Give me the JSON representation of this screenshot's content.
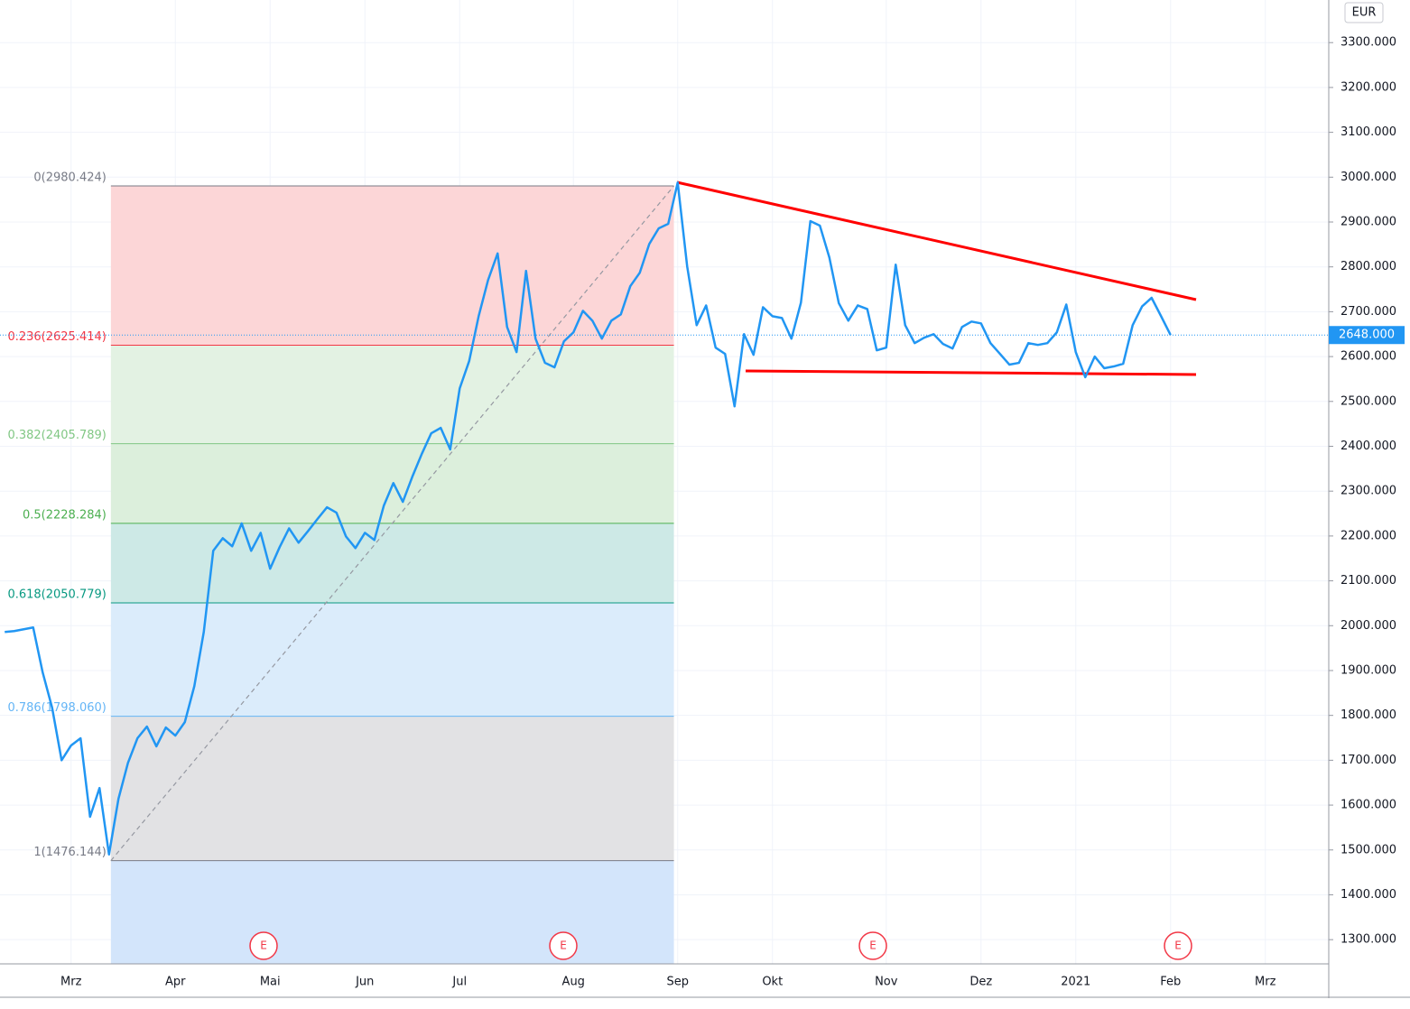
{
  "chart_data": {
    "type": "line",
    "currency": "EUR",
    "categories": [
      null,
      null,
      null,
      null,
      null,
      null,
      null,
      "Mrz",
      null,
      null,
      null,
      null,
      null,
      null,
      null,
      null,
      null,
      null,
      "Apr",
      null,
      null,
      null,
      null,
      null,
      null,
      null,
      null,
      null,
      "Mai",
      null,
      null,
      null,
      null,
      null,
      null,
      null,
      null,
      null,
      "Jun",
      null,
      null,
      null,
      null,
      null,
      null,
      null,
      null,
      null,
      "Jul",
      null,
      null,
      null,
      null,
      null,
      null,
      null,
      null,
      null,
      null,
      null,
      "Aug",
      null,
      null,
      null,
      null,
      null,
      null,
      null,
      null,
      null,
      null,
      "Sep",
      null,
      null,
      null,
      null,
      null,
      null,
      null,
      null,
      null,
      "Okt",
      null,
      null,
      null,
      null,
      null,
      null,
      null,
      null,
      null,
      null,
      null,
      "Nov",
      null,
      null,
      null,
      null,
      null,
      null,
      null,
      null,
      null,
      "Dez",
      null,
      null,
      null,
      null,
      null,
      null,
      null,
      null,
      null,
      "2021",
      null,
      null,
      null,
      null,
      null,
      null,
      null,
      null,
      null,
      "Feb",
      null,
      null,
      null,
      null,
      null,
      null,
      null,
      null,
      null,
      "Mrz",
      null,
      null,
      null,
      null,
      null,
      null
    ],
    "series": [
      {
        "color": "#2196f3",
        "values": [
          1986,
          1988,
          1992,
          1996,
          1896,
          1817,
          1700,
          1733,
          1749,
          1574,
          1638,
          1490,
          1614,
          1694,
          1749,
          1775,
          1731,
          1773,
          1755,
          1785,
          1865,
          1986,
          2167,
          2195,
          2177,
          2228,
          2167,
          2207,
          2127,
          2175,
          2217,
          2185,
          2211,
          2238,
          2264,
          2252,
          2199,
          2173,
          2207,
          2191,
          2268,
          2318,
          2276,
          2332,
          2383,
          2429,
          2441,
          2393,
          2529,
          2590,
          2690,
          2771,
          2830,
          2666,
          2610,
          2791,
          2640,
          2586,
          2576,
          2634,
          2654,
          2702,
          2680,
          2640,
          2680,
          2694,
          2757,
          2787,
          2851,
          2886,
          2896,
          2988,
          2801,
          2670,
          2714,
          2620,
          2606,
          2489,
          2650,
          2604,
          2710,
          2690,
          2686,
          2640,
          2720,
          2902,
          2892,
          2821,
          2719,
          2680,
          2714,
          2706,
          2614,
          2620,
          2805,
          2670,
          2630,
          2642,
          2650,
          2628,
          2618,
          2666,
          2678,
          2674,
          2630,
          2606,
          2582,
          2586,
          2630,
          2626,
          2630,
          2654,
          2716,
          2610,
          2554,
          2600,
          2574,
          2578,
          2584,
          2670,
          2712,
          2731,
          2690,
          2648,
          null,
          null,
          null,
          null,
          null,
          null,
          null,
          null,
          null,
          null,
          null,
          null,
          null,
          null,
          null,
          null
        ]
      }
    ],
    "last_price": {
      "value": 2648,
      "label": "2648.000",
      "color": "#2196f3"
    },
    "ylim": [
      1246,
      3395
    ],
    "yticks": [
      {
        "value": 1300,
        "label": "1300.000"
      },
      {
        "value": 1400,
        "label": "1400.000"
      },
      {
        "value": 1500,
        "label": "1500.000"
      },
      {
        "value": 1600,
        "label": "1600.000"
      },
      {
        "value": 1700,
        "label": "1700.000"
      },
      {
        "value": 1800,
        "label": "1800.000"
      },
      {
        "value": 1900,
        "label": "1900.000"
      },
      {
        "value": 2000,
        "label": "2000.000"
      },
      {
        "value": 2100,
        "label": "2100.000"
      },
      {
        "value": 2200,
        "label": "2200.000"
      },
      {
        "value": 2300,
        "label": "2300.000"
      },
      {
        "value": 2400,
        "label": "2400.000"
      },
      {
        "value": 2500,
        "label": "2500.000"
      },
      {
        "value": 2600,
        "label": "2600.000"
      },
      {
        "value": 2700,
        "label": "2700.000"
      },
      {
        "value": 2800,
        "label": "2800.000"
      },
      {
        "value": 2900,
        "label": "2900.000"
      },
      {
        "value": 3000,
        "label": "3000.000"
      },
      {
        "value": 3100,
        "label": "3100.000"
      },
      {
        "value": 3200,
        "label": "3200.000"
      },
      {
        "value": 3300,
        "label": "3300.000"
      }
    ],
    "grid": true,
    "fib_levels": [
      {
        "label": "0(2980.424)",
        "value": 2980.424,
        "color": "#787b86",
        "fill": "#fcd6d7"
      },
      {
        "label": "0.236(2625.414)",
        "value": 2625.414,
        "color": "#f23645",
        "fill": "#e3f2e3"
      },
      {
        "label": "0.382(2405.789)",
        "value": 2405.789,
        "color": "#81c784",
        "fill": "#dcefdc"
      },
      {
        "label": "0.5(2228.284)",
        "value": 2228.284,
        "color": "#4caf50",
        "fill": "#cde9e6"
      },
      {
        "label": "0.618(2050.779)",
        "value": 2050.779,
        "color": "#089981",
        "fill": "#dbecfb"
      },
      {
        "label": "0.786(1798.060)",
        "value": 1798.06,
        "color": "#64b5f6",
        "fill": "#e2e2e4"
      },
      {
        "label": "1(1476.144)",
        "value": 1476.144,
        "color": "#787b86",
        "fill": "#d3e5fb"
      }
    ],
    "earnings_label": "E"
  }
}
